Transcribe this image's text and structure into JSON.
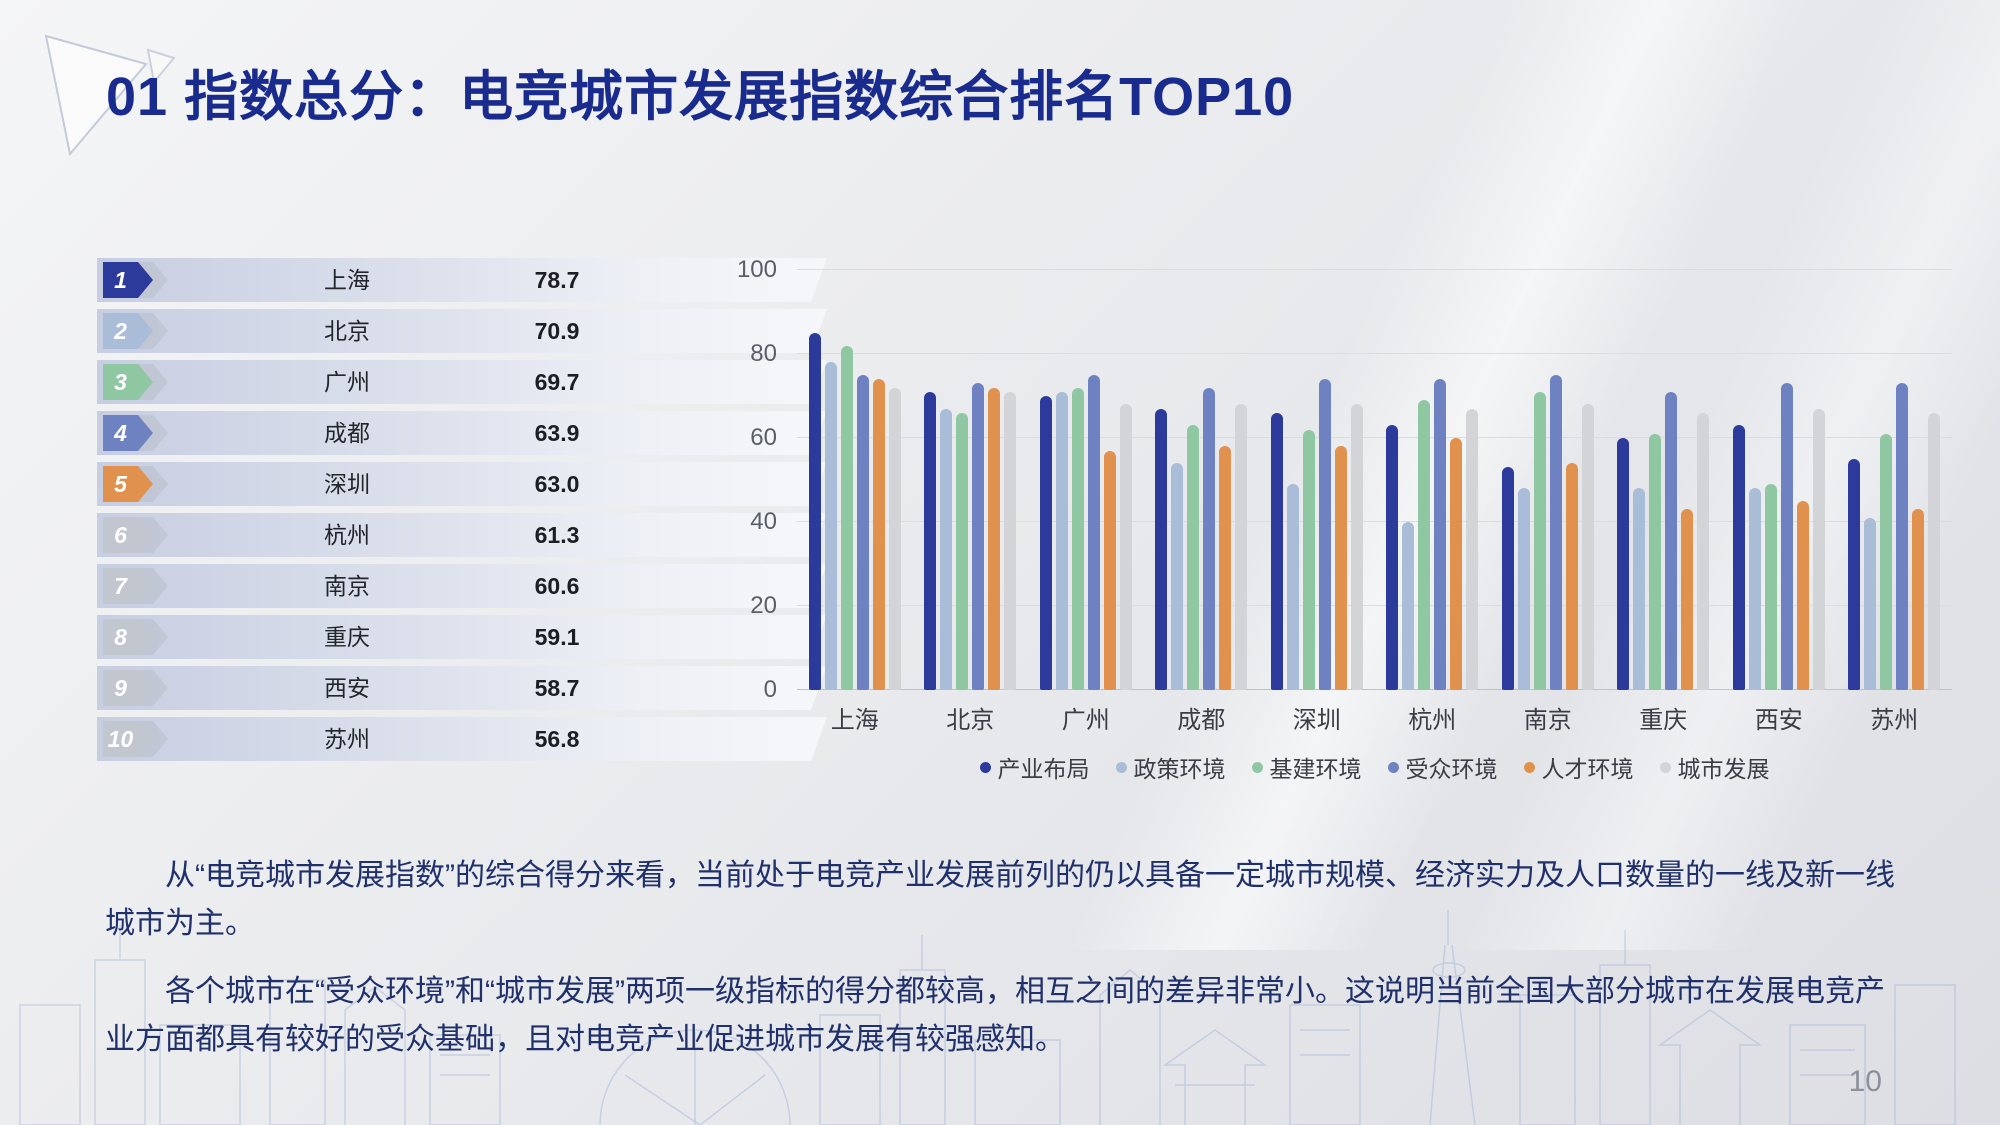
{
  "slide": {
    "title": "01 指数总分：电竞城市发展指数综合排名TOP10",
    "page_number": "10"
  },
  "ranking": {
    "items": [
      {
        "rank": "1",
        "city": "上海",
        "score": "78.7",
        "color": "#2B3A9B"
      },
      {
        "rank": "2",
        "city": "北京",
        "score": "70.9",
        "color": "#A9BCD8"
      },
      {
        "rank": "3",
        "city": "广州",
        "score": "69.7",
        "color": "#8FC7A2"
      },
      {
        "rank": "4",
        "city": "成都",
        "score": "63.9",
        "color": "#6E82C2"
      },
      {
        "rank": "5",
        "city": "深圳",
        "score": "63.0",
        "color": "#DF914D"
      },
      {
        "rank": "6",
        "city": "杭州",
        "score": "61.3",
        "color": "#C2C6CF"
      },
      {
        "rank": "7",
        "city": "南京",
        "score": "60.6",
        "color": "#C2C6CF"
      },
      {
        "rank": "8",
        "city": "重庆",
        "score": "59.1",
        "color": "#C2C6CF"
      },
      {
        "rank": "9",
        "city": "西安",
        "score": "58.7",
        "color": "#C2C6CF"
      },
      {
        "rank": "10",
        "city": "苏州",
        "score": "56.8",
        "color": "#C2C6CF"
      }
    ]
  },
  "chart_data": {
    "type": "bar",
    "title": "",
    "xlabel": "",
    "ylabel": "",
    "ylim": [
      0,
      100
    ],
    "yticks": [
      0,
      20,
      40,
      60,
      80,
      100
    ],
    "grid": true,
    "legend_position": "bottom",
    "categories": [
      "上海",
      "北京",
      "广州",
      "成都",
      "深圳",
      "杭州",
      "南京",
      "重庆",
      "西安",
      "苏州"
    ],
    "series": [
      {
        "name": "产业布局",
        "color": "#2B3A9B",
        "values": [
          85,
          71,
          70,
          67,
          66,
          63,
          53,
          60,
          63,
          55
        ]
      },
      {
        "name": "政策环境",
        "color": "#A9BCD8",
        "values": [
          78,
          67,
          71,
          54,
          49,
          40,
          48,
          48,
          48,
          41
        ]
      },
      {
        "name": "基建环境",
        "color": "#8FC7A2",
        "values": [
          82,
          66,
          72,
          63,
          62,
          69,
          71,
          61,
          49,
          61
        ]
      },
      {
        "name": "受众环境",
        "color": "#6E82C2",
        "values": [
          75,
          73,
          75,
          72,
          74,
          74,
          75,
          71,
          73,
          73
        ]
      },
      {
        "name": "人才环境",
        "color": "#DF914D",
        "values": [
          74,
          72,
          57,
          58,
          58,
          60,
          54,
          43,
          45,
          43
        ]
      },
      {
        "name": "城市发展",
        "color": "#D2D4D8",
        "values": [
          72,
          71,
          68,
          68,
          68,
          67,
          68,
          66,
          67,
          66
        ]
      }
    ]
  },
  "paragraphs": {
    "p1": "从“电竞城市发展指数”的综合得分来看，当前处于电竞产业发展前列的仍以具备一定城市规模、经济实力及人口数量的一线及新一线城市为主。",
    "p2": "各个城市在“受众环境”和“城市发展”两项一级指标的得分都较高，相互之间的差异非常小。这说明当前全国大部分城市在发展电竞产业方面都具有较好的受众基础，且对电竞产业促进城市发展有较强感知。"
  }
}
